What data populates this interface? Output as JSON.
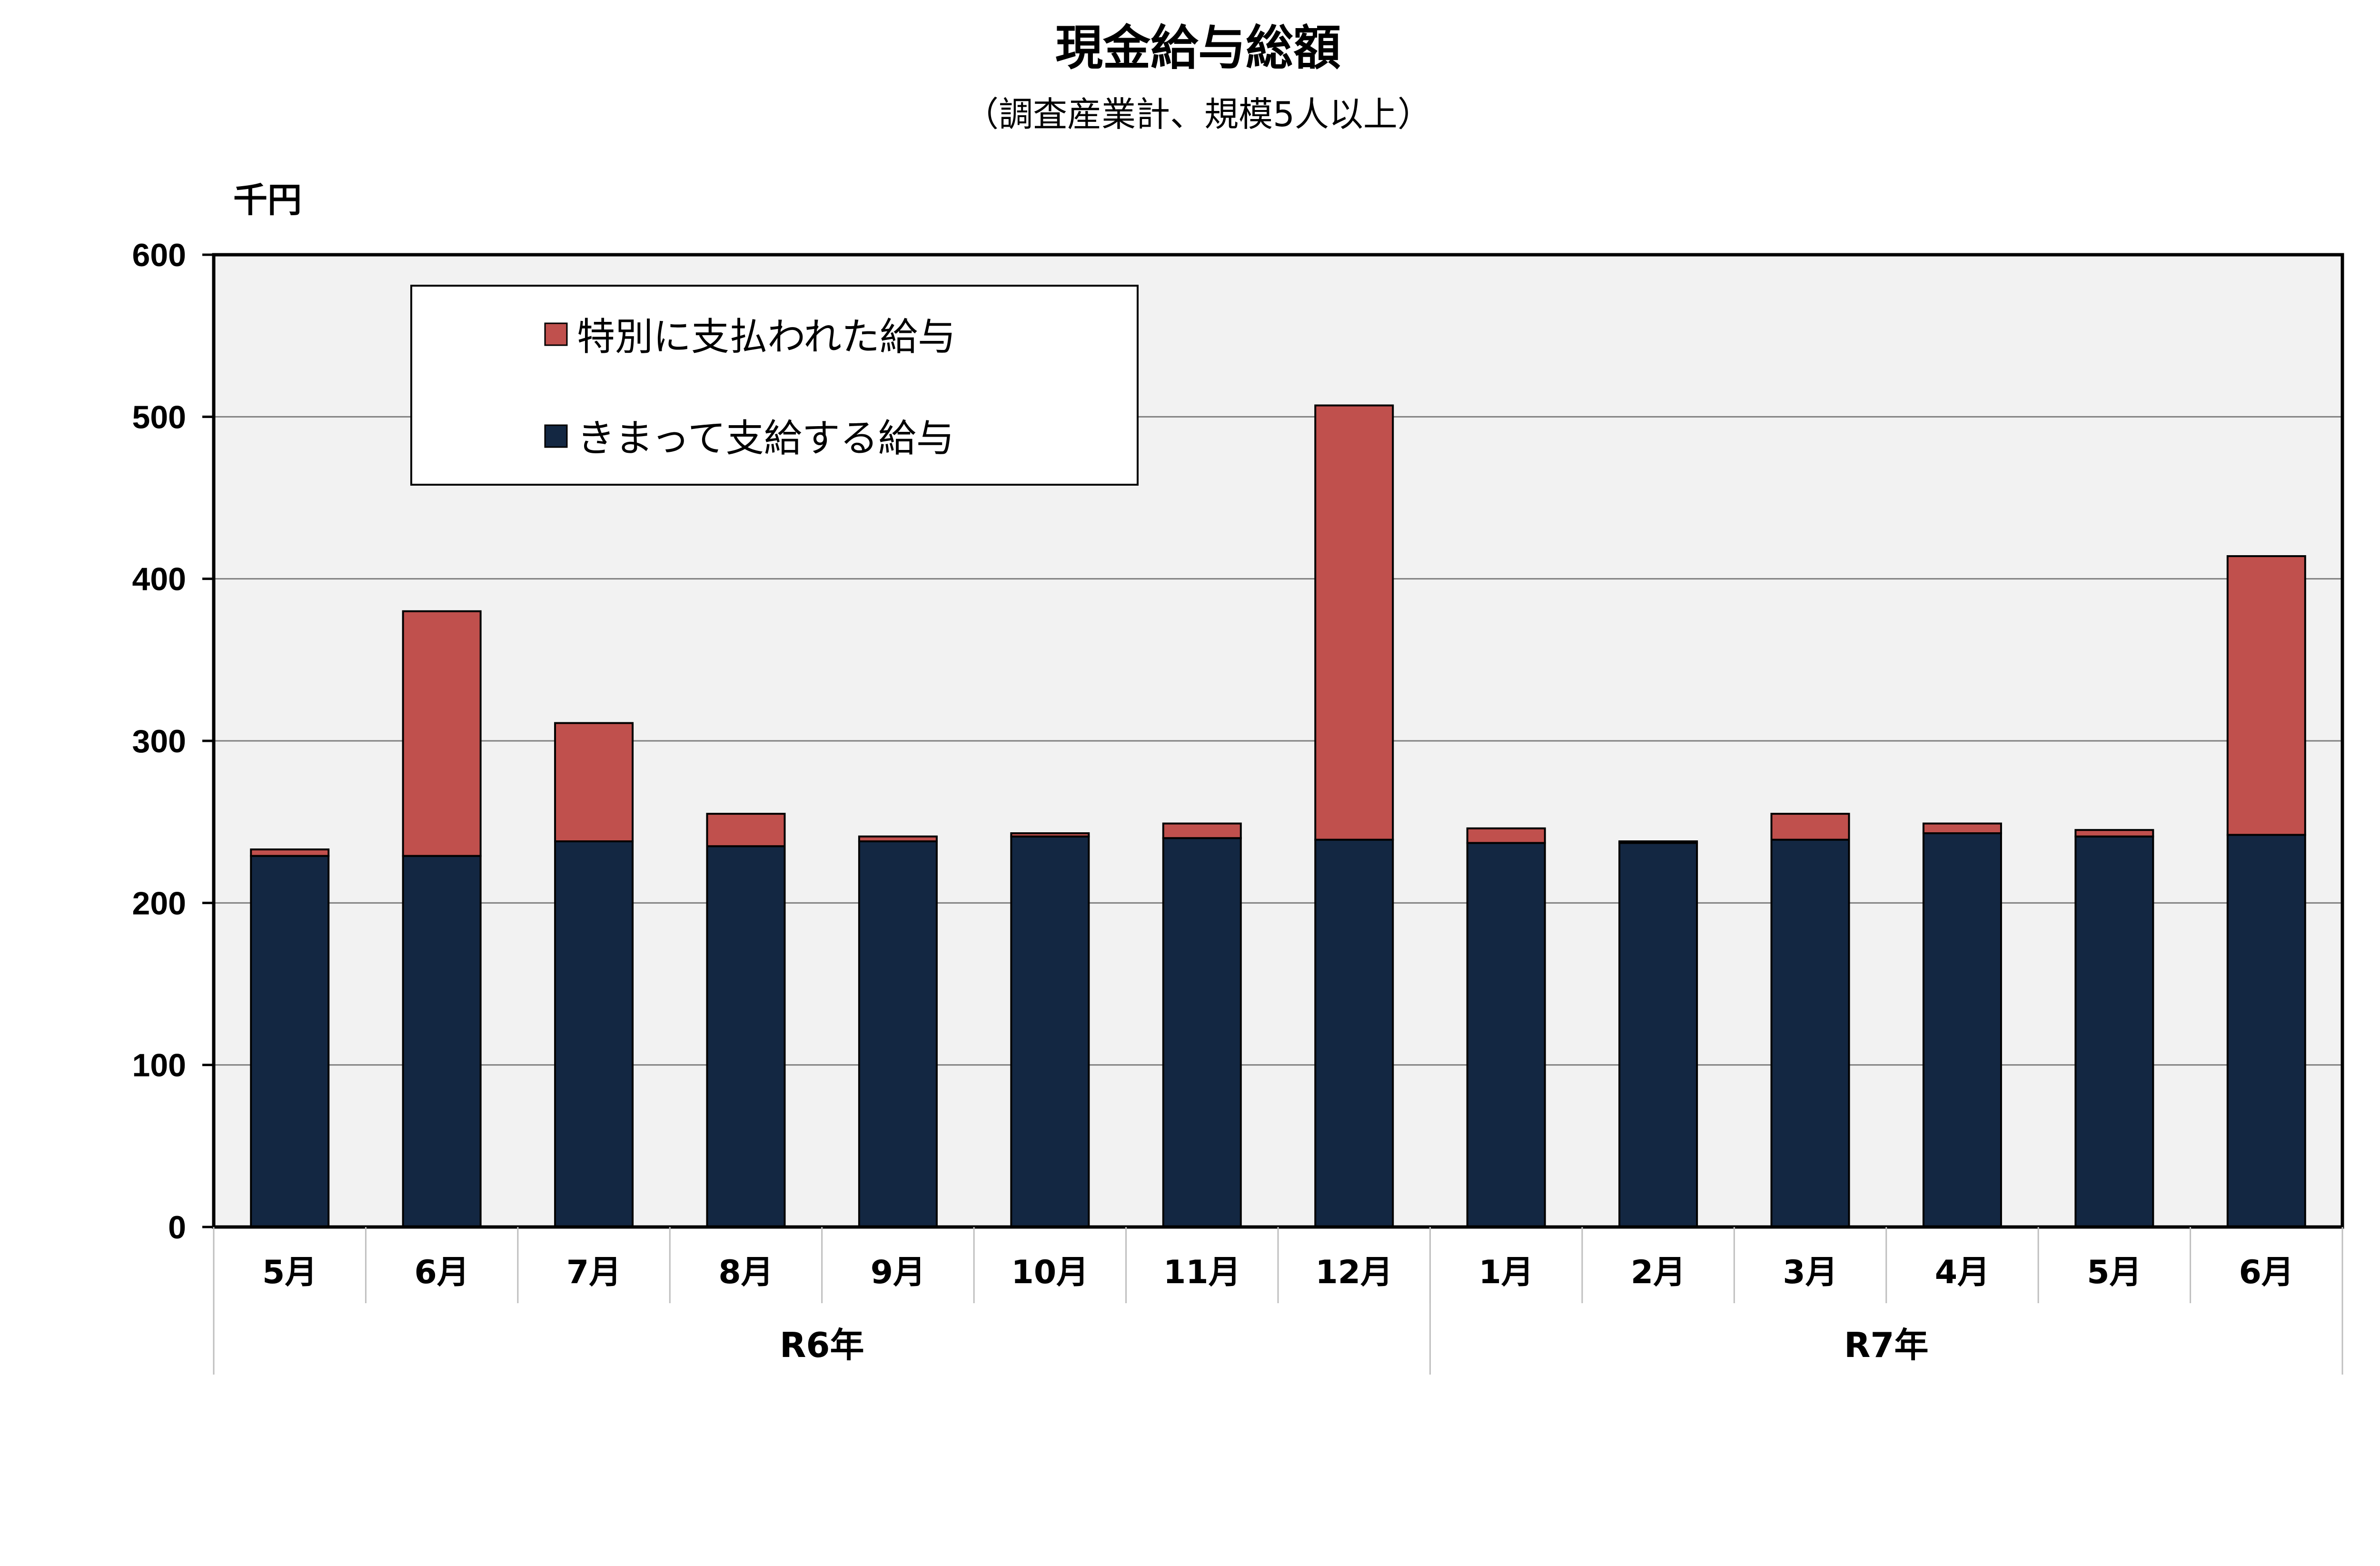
{
  "chart_data": {
    "type": "bar",
    "stacked": true,
    "title": "現金給与総額",
    "subtitle": "（調査産業計、規模5人以上）",
    "ylabel": "千円",
    "ylim": [
      0,
      600
    ],
    "yticks": [
      0,
      100,
      200,
      300,
      400,
      500,
      600
    ],
    "grid": true,
    "legend_position": "top-left",
    "categories": [
      "5月",
      "6月",
      "7月",
      "8月",
      "9月",
      "10月",
      "11月",
      "12月",
      "1月",
      "2月",
      "3月",
      "4月",
      "5月",
      "6月"
    ],
    "groups": [
      {
        "label": "R6年",
        "count": 8
      },
      {
        "label": "R7年",
        "count": 6
      }
    ],
    "series": [
      {
        "name": "きまって支給する給与",
        "color": "#132742",
        "values": [
          229,
          229,
          238,
          235,
          238,
          241,
          240,
          239,
          237,
          237,
          239,
          243,
          241,
          242
        ]
      },
      {
        "name": "特別に支払われた給与",
        "color": "#c0504d",
        "values": [
          4,
          151,
          73,
          20,
          3,
          2,
          9,
          268,
          9,
          1,
          16,
          6,
          4,
          172
        ]
      }
    ],
    "legend_order": [
      "特別に支払われた給与",
      "きまって支給する給与"
    ],
    "plot_background": "#f2f2f2"
  }
}
